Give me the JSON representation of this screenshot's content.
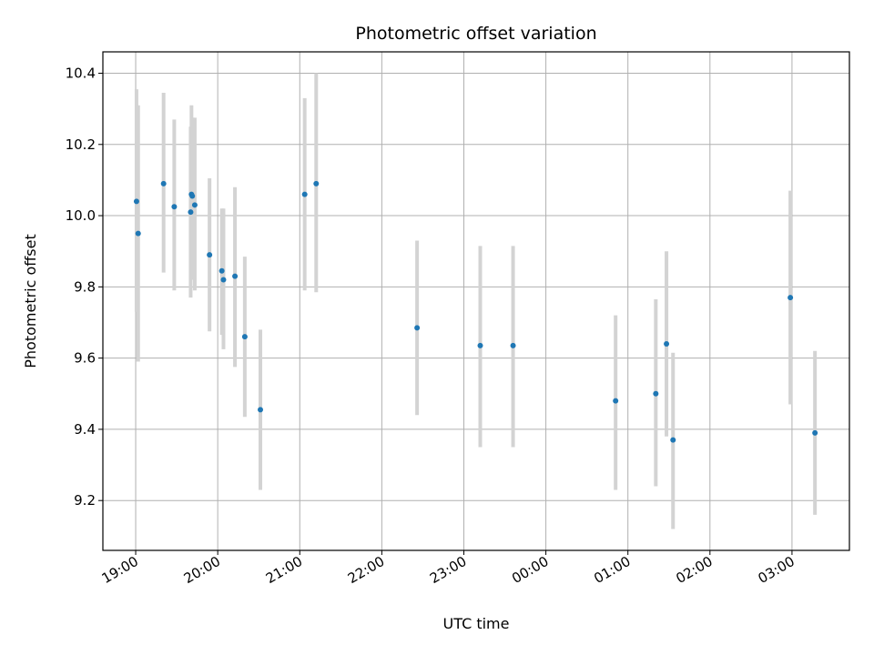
{
  "chart_data": {
    "type": "scatter",
    "title": "Photometric offset variation",
    "xlabel": "UTC time",
    "ylabel": "Photometric offset",
    "x_unit": "hours since 19:00 UTC (time of day)",
    "xlim": [
      -0.4,
      8.7
    ],
    "ylim": [
      9.06,
      10.46
    ],
    "x_ticks": [
      0,
      1,
      2,
      3,
      4,
      5,
      6,
      7,
      8
    ],
    "x_tick_labels": [
      "19:00",
      "20:00",
      "21:00",
      "22:00",
      "23:00",
      "00:00",
      "01:00",
      "02:00",
      "03:00"
    ],
    "y_ticks": [
      9.2,
      9.4,
      9.6,
      9.8,
      10.0,
      10.2,
      10.4
    ],
    "y_tick_labels": [
      "9.2",
      "9.4",
      "9.6",
      "9.8",
      "10.0",
      "10.2",
      "10.4"
    ],
    "grid": true,
    "point_color": "#1f77b4",
    "errorbar_color": "#d3d3d3",
    "points": [
      {
        "x": 0.01,
        "y": 10.04,
        "low": 9.73,
        "high": 10.355
      },
      {
        "x": 0.03,
        "y": 9.95,
        "low": 9.59,
        "high": 10.31
      },
      {
        "x": 0.34,
        "y": 10.09,
        "low": 9.84,
        "high": 10.345
      },
      {
        "x": 0.47,
        "y": 10.025,
        "low": 9.79,
        "high": 10.27
      },
      {
        "x": 0.67,
        "y": 10.01,
        "low": 9.77,
        "high": 10.25
      },
      {
        "x": 0.68,
        "y": 10.06,
        "low": 9.82,
        "high": 10.31
      },
      {
        "x": 0.69,
        "y": 10.055,
        "low": 9.835,
        "high": 10.275
      },
      {
        "x": 0.72,
        "y": 10.03,
        "low": 9.79,
        "high": 10.275
      },
      {
        "x": 0.9,
        "y": 9.89,
        "low": 9.675,
        "high": 10.105
      },
      {
        "x": 1.05,
        "y": 9.845,
        "low": 9.665,
        "high": 10.02
      },
      {
        "x": 1.07,
        "y": 9.82,
        "low": 9.625,
        "high": 10.02
      },
      {
        "x": 1.21,
        "y": 9.83,
        "low": 9.575,
        "high": 10.08
      },
      {
        "x": 1.33,
        "y": 9.66,
        "low": 9.435,
        "high": 9.885
      },
      {
        "x": 1.52,
        "y": 9.455,
        "low": 9.23,
        "high": 9.68
      },
      {
        "x": 2.06,
        "y": 10.06,
        "low": 9.79,
        "high": 10.33
      },
      {
        "x": 2.2,
        "y": 10.09,
        "low": 9.785,
        "high": 10.4
      },
      {
        "x": 3.43,
        "y": 9.685,
        "low": 9.44,
        "high": 9.93
      },
      {
        "x": 4.2,
        "y": 9.635,
        "low": 9.35,
        "high": 9.915
      },
      {
        "x": 4.6,
        "y": 9.635,
        "low": 9.35,
        "high": 9.915
      },
      {
        "x": 5.85,
        "y": 9.48,
        "low": 9.23,
        "high": 9.72
      },
      {
        "x": 6.34,
        "y": 9.5,
        "low": 9.24,
        "high": 9.765
      },
      {
        "x": 6.47,
        "y": 9.64,
        "low": 9.38,
        "high": 9.9
      },
      {
        "x": 6.55,
        "y": 9.37,
        "low": 9.12,
        "high": 9.615
      },
      {
        "x": 7.98,
        "y": 9.77,
        "low": 9.47,
        "high": 10.07
      },
      {
        "x": 8.28,
        "y": 9.39,
        "low": 9.16,
        "high": 9.62
      }
    ]
  }
}
